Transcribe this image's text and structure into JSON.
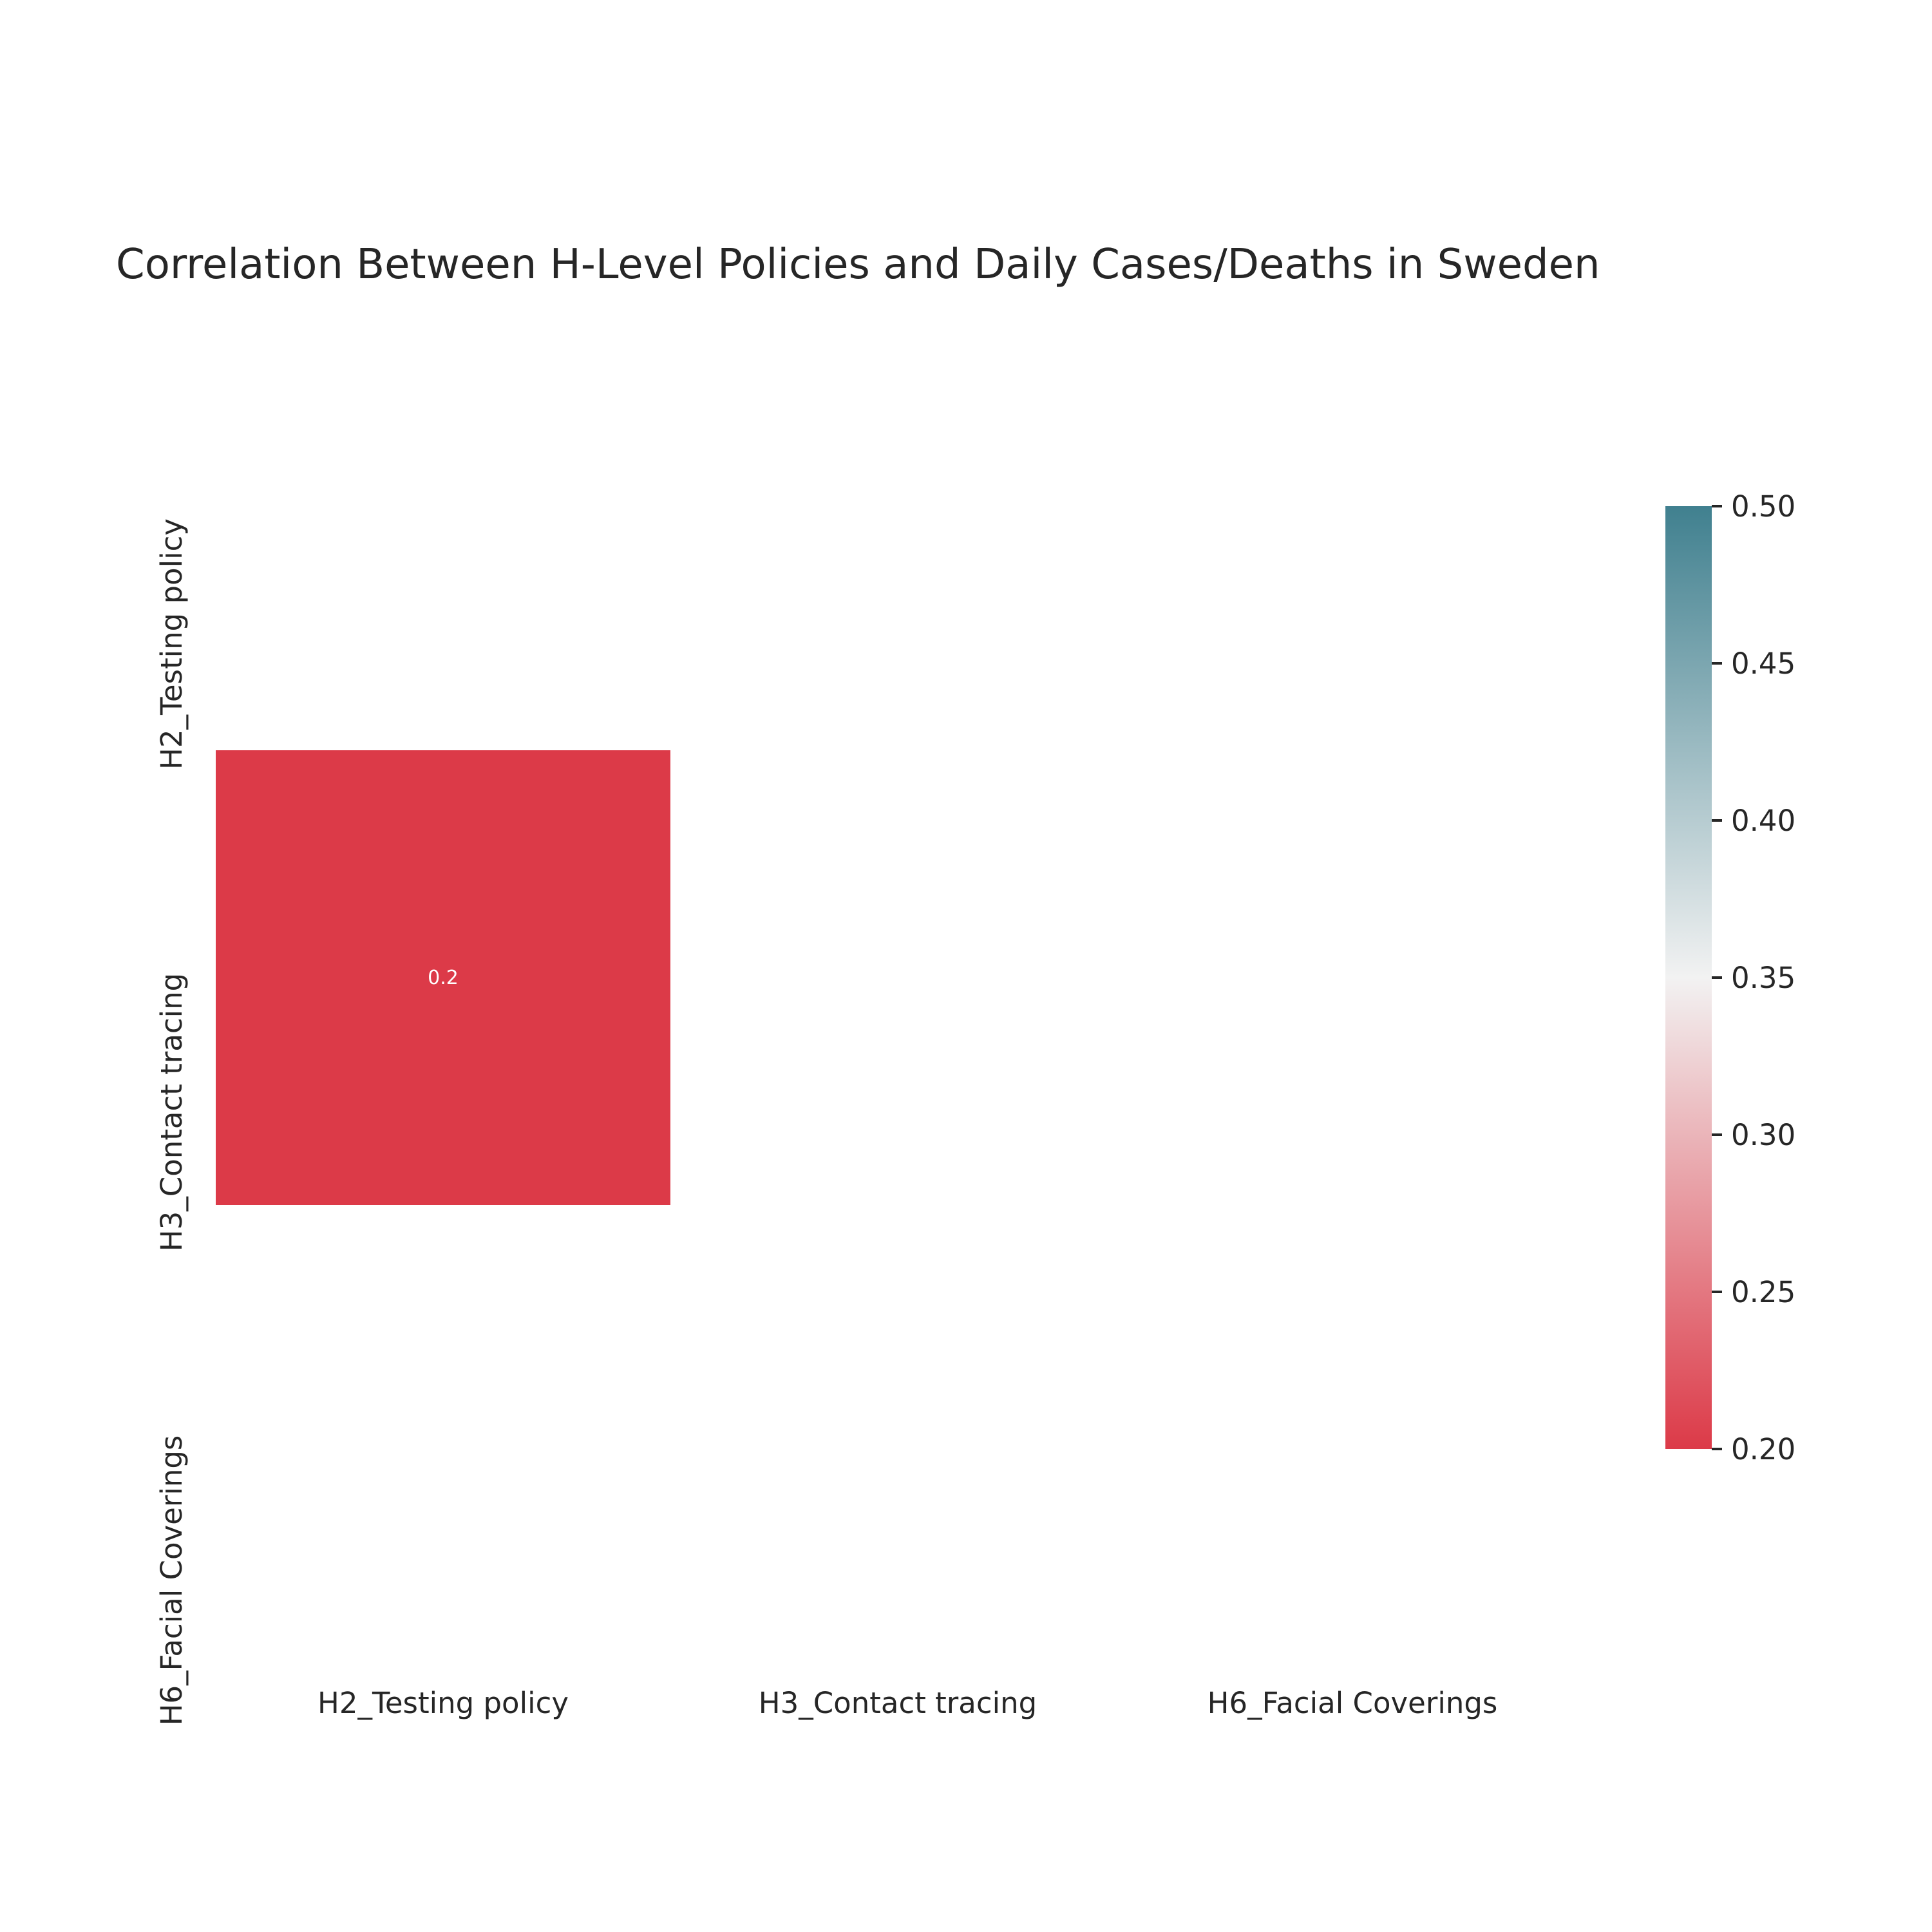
{
  "chart_data": {
    "type": "heatmap",
    "title": "Correlation Between H-Level Policies and Daily Cases/Deaths in Sweden",
    "row_labels": [
      "H2_Testing policy",
      "H3_Contact tracing",
      "H6_Facial Coverings"
    ],
    "col_labels": [
      "H2_Testing policy",
      "H3_Contact tracing",
      "H6_Facial Coverings"
    ],
    "cells": [
      {
        "row": 1,
        "col": 0,
        "value": 0.2,
        "label": "0.2"
      }
    ],
    "masked": "all other cells are masked (blank)",
    "colorbar": {
      "min": 0.2,
      "max": 0.5,
      "ticks": [
        "0.20",
        "0.25",
        "0.30",
        "0.35",
        "0.40",
        "0.45",
        "0.50"
      ],
      "colors": [
        "#dc3a48",
        "#f2f2f2",
        "#40808f"
      ]
    }
  }
}
